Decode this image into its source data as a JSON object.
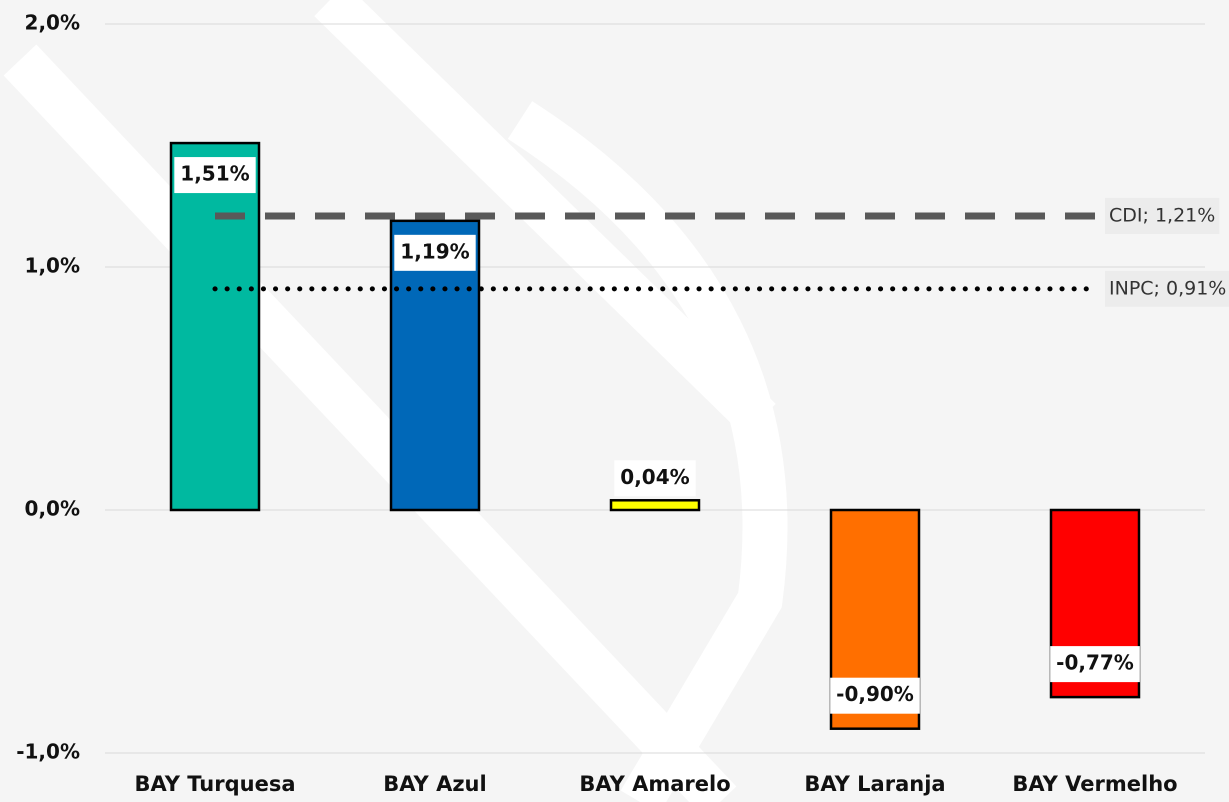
{
  "chart_data": {
    "type": "bar",
    "categories": [
      "BAY Turquesa",
      "BAY Azul",
      "BAY Amarelo",
      "BAY Laranja",
      "BAY Vermelho"
    ],
    "values": [
      1.51,
      1.19,
      0.04,
      -0.9,
      -0.77
    ],
    "value_labels": [
      "1,51%",
      "1,19%",
      "0,04%",
      "-0,90%",
      "-0,77%"
    ],
    "colors": [
      "#00b9a0",
      "#0068b8",
      "#ffff00",
      "#ff6f00",
      "#ff0000"
    ],
    "ylim": [
      -1,
      2
    ],
    "yticks": [
      {
        "value": -1,
        "label": "-1,0%"
      },
      {
        "value": 0,
        "label": "0,0%"
      },
      {
        "value": 1,
        "label": "1,0%"
      },
      {
        "value": 2,
        "label": "2,0%"
      }
    ],
    "grid": true,
    "reference_lines": [
      {
        "label": "CDI; 1,21%",
        "value": 1.21,
        "style": "dashed",
        "color": "#595959"
      },
      {
        "label": "INPC; 0,91%",
        "value": 0.91,
        "style": "dotted",
        "color": "#000000"
      }
    ]
  }
}
